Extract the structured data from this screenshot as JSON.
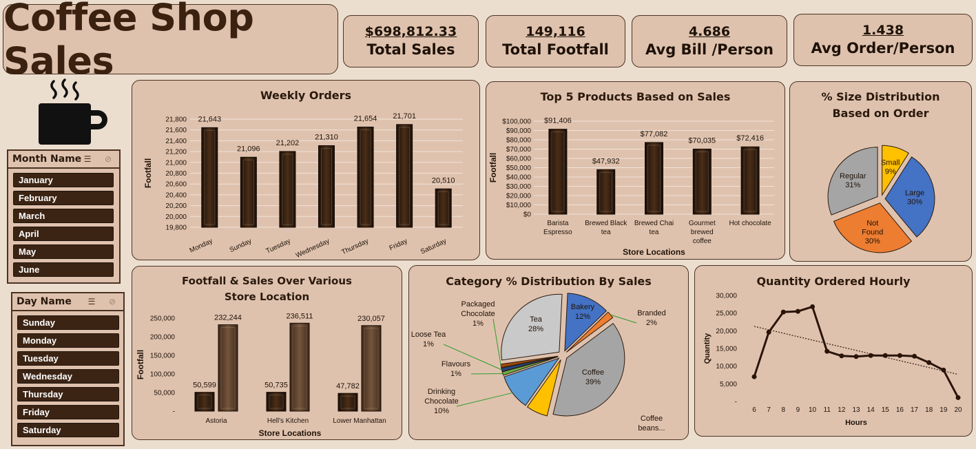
{
  "header": {
    "title": "Coffee Shop Sales"
  },
  "kpis": [
    {
      "value": "$698,812.33",
      "label": "Total Sales"
    },
    {
      "value": "149,116",
      "label": "Total Footfall"
    },
    {
      "value": "4.686",
      "label": "Avg Bill /Person"
    },
    {
      "value": "1.438",
      "label": "Avg Order/Person"
    }
  ],
  "slicers": {
    "month": {
      "title": "Month Name",
      "items": [
        "January",
        "February",
        "March",
        "April",
        "May",
        "June"
      ]
    },
    "day": {
      "title": "Day Name",
      "items": [
        "Sunday",
        "Monday",
        "Tuesday",
        "Wednesday",
        "Thursday",
        "Friday",
        "Saturday"
      ]
    }
  },
  "colors": {
    "bar_dark": "#3b2414",
    "bar_light": "#5e4330",
    "panel": "#dfc2ae",
    "background": "#ecdecf",
    "border": "#4a3222"
  },
  "chart_data": [
    {
      "id": "weekly",
      "type": "bar",
      "title": "Weekly Orders",
      "ylabel": "Footfall",
      "xlabel": "",
      "categories": [
        "Monday",
        "Sunday",
        "Tuesday",
        "Wednesday",
        "Thursday",
        "Friday",
        "Saturday"
      ],
      "values": [
        21643,
        21096,
        21202,
        21310,
        21654,
        21701,
        20510
      ],
      "value_labels": [
        "21,643",
        "21,096",
        "21,202",
        "21,310",
        "21,654",
        "21,701",
        "20,510"
      ],
      "ylim": [
        19800,
        21800
      ],
      "yticks": [
        "19,800",
        "20,000",
        "20,200",
        "20,400",
        "20,600",
        "20,800",
        "21,000",
        "21,200",
        "21,400",
        "21,600",
        "21,800"
      ],
      "grid": true
    },
    {
      "id": "products",
      "type": "bar",
      "title": "Top 5 Products Based on Sales",
      "ylabel": "Footfall",
      "xlabel": "Store Locations",
      "categories": [
        "Barista Espresso",
        "Brewed Black tea",
        "Brewed Chai tea",
        "Gourmet brewed coffee",
        "Hot chocolate"
      ],
      "values": [
        91406,
        47932,
        77082,
        70035,
        72416
      ],
      "value_labels": [
        "$91,406",
        "$47,932",
        "$77,082",
        "$70,035",
        "$72,416"
      ],
      "ylim": [
        0,
        100000
      ],
      "yticks": [
        "$0",
        "$10,000",
        "$20,000",
        "$30,000",
        "$40,000",
        "$50,000",
        "$60,000",
        "$70,000",
        "$80,000",
        "$90,000",
        "$100,000"
      ],
      "grid": true
    },
    {
      "id": "size",
      "type": "pie",
      "title": "% Size Distribution Based on Order",
      "slices": [
        {
          "label": "Regular",
          "value": 31,
          "pct": "31%",
          "color": "#a5a5a5"
        },
        {
          "label": "Small",
          "value": 9,
          "pct": "9%",
          "color": "#ffc000"
        },
        {
          "label": "Large",
          "value": 30,
          "pct": "30%",
          "color": "#4472c4"
        },
        {
          "label": "Not Found",
          "value": 30,
          "pct": "30%",
          "color": "#ed7d31"
        }
      ]
    },
    {
      "id": "stores",
      "type": "bar",
      "title": "Footfall & Sales Over Various Store Location",
      "ylabel": "Footfall",
      "xlabel": "Store Locations",
      "categories": [
        "Astoria",
        "Hell's Kitchen",
        "Lower Manhattan"
      ],
      "series": [
        {
          "values": [
            50599,
            50735,
            47782
          ],
          "labels": [
            "50,599",
            "50,735",
            "47,782"
          ],
          "color": "#3b2414"
        },
        {
          "values": [
            232244,
            236511,
            230057
          ],
          "labels": [
            "232,244",
            "236,511",
            "230,057"
          ],
          "color": "#5e4330"
        }
      ],
      "ylim": [
        0,
        250000
      ],
      "yticks": [
        "-",
        "50,000",
        "100,000",
        "150,000",
        "200,000",
        "250,000"
      ],
      "grid": false
    },
    {
      "id": "category",
      "type": "pie",
      "title": "Category % Distribution By Sales",
      "slices": [
        {
          "label": "Bakery",
          "value": 12,
          "pct": "12%",
          "color": "#4472c4"
        },
        {
          "label": "Branded",
          "value": 2,
          "pct": "2%",
          "color": "#ed7d31"
        },
        {
          "label": "Coffee",
          "value": 39,
          "pct": "39%",
          "color": "#a5a5a5"
        },
        {
          "label": "Coffee beans...",
          "value": 6,
          "pct": "",
          "color": "#ffc000"
        },
        {
          "label": "Drinking Chocolate",
          "value": 10,
          "pct": "10%",
          "color": "#5b9bd5"
        },
        {
          "label": "Flavours",
          "value": 1,
          "pct": "1%",
          "color": "#70ad47"
        },
        {
          "label": "Loose Tea",
          "value": 1,
          "pct": "1%",
          "color": "#264478"
        },
        {
          "label": "Packaged Chocolate",
          "value": 1,
          "pct": "1%",
          "color": "#9e480e"
        },
        {
          "label": "Tea",
          "value": 28,
          "pct": "28%",
          "color": "#c9c9c9"
        }
      ]
    },
    {
      "id": "hourly",
      "type": "line",
      "title": "Quantity Ordered Hourly",
      "ylabel": "Quantity",
      "xlabel": "Hours",
      "x": [
        6,
        7,
        8,
        9,
        10,
        11,
        12,
        13,
        14,
        15,
        16,
        17,
        18,
        19,
        20
      ],
      "values": [
        7000,
        19600,
        25300,
        25500,
        26800,
        14200,
        12900,
        12700,
        13000,
        13000,
        13000,
        12800,
        11000,
        8900,
        1100
      ],
      "ylim": [
        0,
        30000
      ],
      "yticks": [
        "-",
        "5,000",
        "10,000",
        "15,000",
        "20,000",
        "25,000",
        "30,000"
      ],
      "trendline": true,
      "grid": false
    }
  ]
}
